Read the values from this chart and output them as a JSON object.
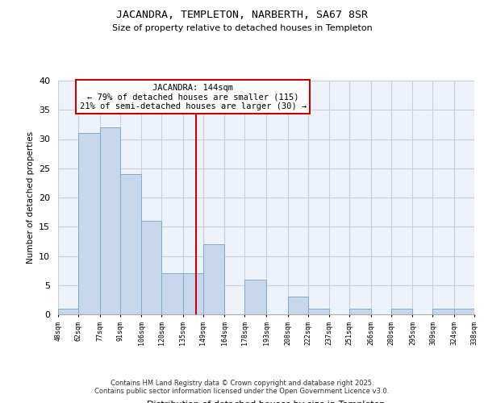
{
  "title": "JACANDRA, TEMPLETON, NARBERTH, SA67 8SR",
  "subtitle": "Size of property relative to detached houses in Templeton",
  "xlabel": "Distribution of detached houses by size in Templeton",
  "ylabel": "Number of detached properties",
  "bins": [
    48,
    62,
    77,
    91,
    106,
    120,
    135,
    149,
    164,
    178,
    193,
    208,
    222,
    237,
    251,
    266,
    280,
    295,
    309,
    324,
    338
  ],
  "counts": [
    1,
    31,
    32,
    24,
    16,
    7,
    7,
    12,
    0,
    6,
    0,
    3,
    1,
    0,
    1,
    0,
    1,
    0,
    1,
    1
  ],
  "bar_color": "#c8d8ec",
  "bar_edge_color": "#7aaccc",
  "vline_x": 144,
  "vline_color": "#cc0000",
  "annotation_text": "JACANDRA: 144sqm\n← 79% of detached houses are smaller (115)\n21% of semi-detached houses are larger (30) →",
  "annotation_box_color": "#ffffff",
  "annotation_box_edge": "#cc0000",
  "ylim": [
    0,
    40
  ],
  "yticks": [
    0,
    5,
    10,
    15,
    20,
    25,
    30,
    35,
    40
  ],
  "background_color": "#eef2fa",
  "grid_color": "#c8d0e0",
  "footer_line1": "Contains HM Land Registry data © Crown copyright and database right 2025.",
  "footer_line2": "Contains public sector information licensed under the Open Government Licence v3.0."
}
